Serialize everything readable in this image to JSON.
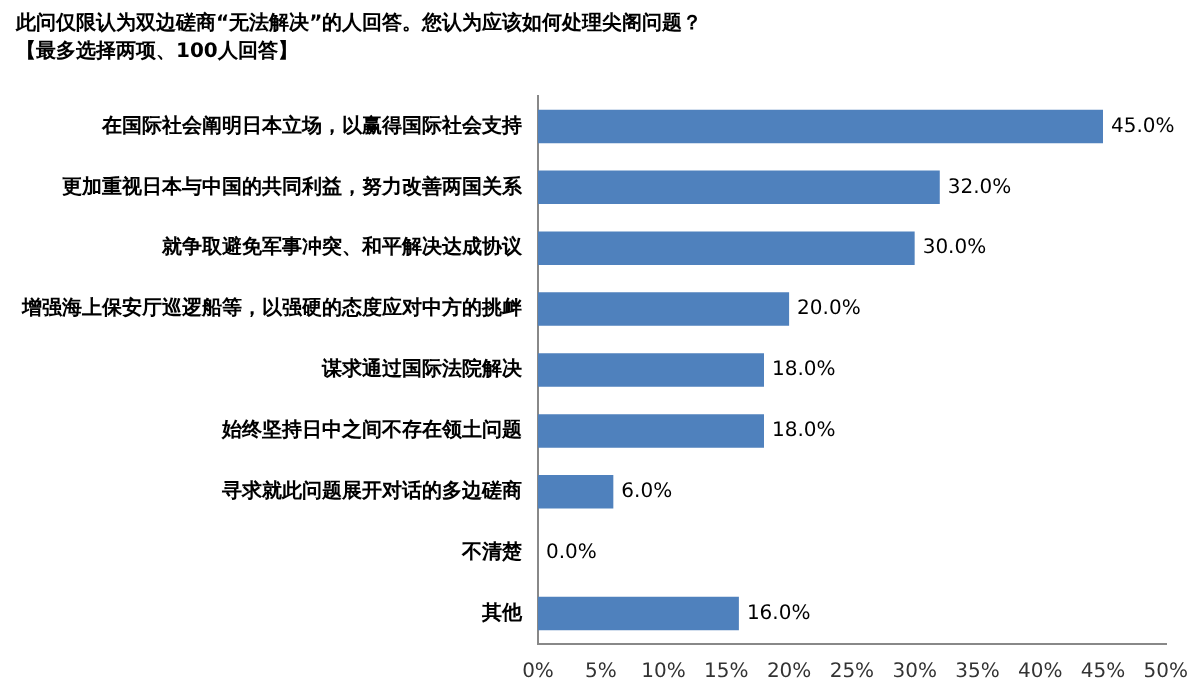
{
  "chart_data": {
    "type": "bar",
    "orientation": "horizontal",
    "title": "此问仅限认为双边磋商“无法解决”的人回答。您认为应该如何处理尖阁问题？",
    "subtitle": "【最多选择两项、100人回答】",
    "categories": [
      "在国际社会阐明日本立场，以赢得国际社会支持",
      "更加重视日本与中国的共同利益，努力改善两国关系",
      "就争取避免军事冲突、和平解决达成协议",
      "增强海上保安厅巡逻船等，以强硬的态度应对中方的挑衅",
      "谋求通过国际法院解决",
      "始终坚持日中之间不存在领土问题",
      "寻求就此问题展开对话的多边磋商",
      "不清楚",
      "其他"
    ],
    "values": [
      45,
      32,
      30,
      20,
      18,
      18,
      6,
      0,
      16
    ],
    "value_labels": [
      "45.0%",
      "32.0%",
      "30.0%",
      "20.0%",
      "18.0%",
      "18.0%",
      "6.0%",
      "0.0%",
      "16.0%"
    ],
    "color": "#4f81bd",
    "xlim": [
      0,
      50
    ],
    "xticks": [
      {
        "value": 0,
        "label": "0%"
      },
      {
        "value": 5,
        "label": "5%"
      },
      {
        "value": 10,
        "label": "10%"
      },
      {
        "value": 15,
        "label": "15%"
      },
      {
        "value": 20,
        "label": "20%"
      },
      {
        "value": 25,
        "label": "25%"
      },
      {
        "value": 30,
        "label": "30%"
      },
      {
        "value": 35,
        "label": "35%"
      },
      {
        "value": 40,
        "label": "40%"
      },
      {
        "value": 45,
        "label": "45%"
      },
      {
        "value": 50,
        "label": "50%"
      }
    ],
    "grid": false,
    "legend": false
  }
}
